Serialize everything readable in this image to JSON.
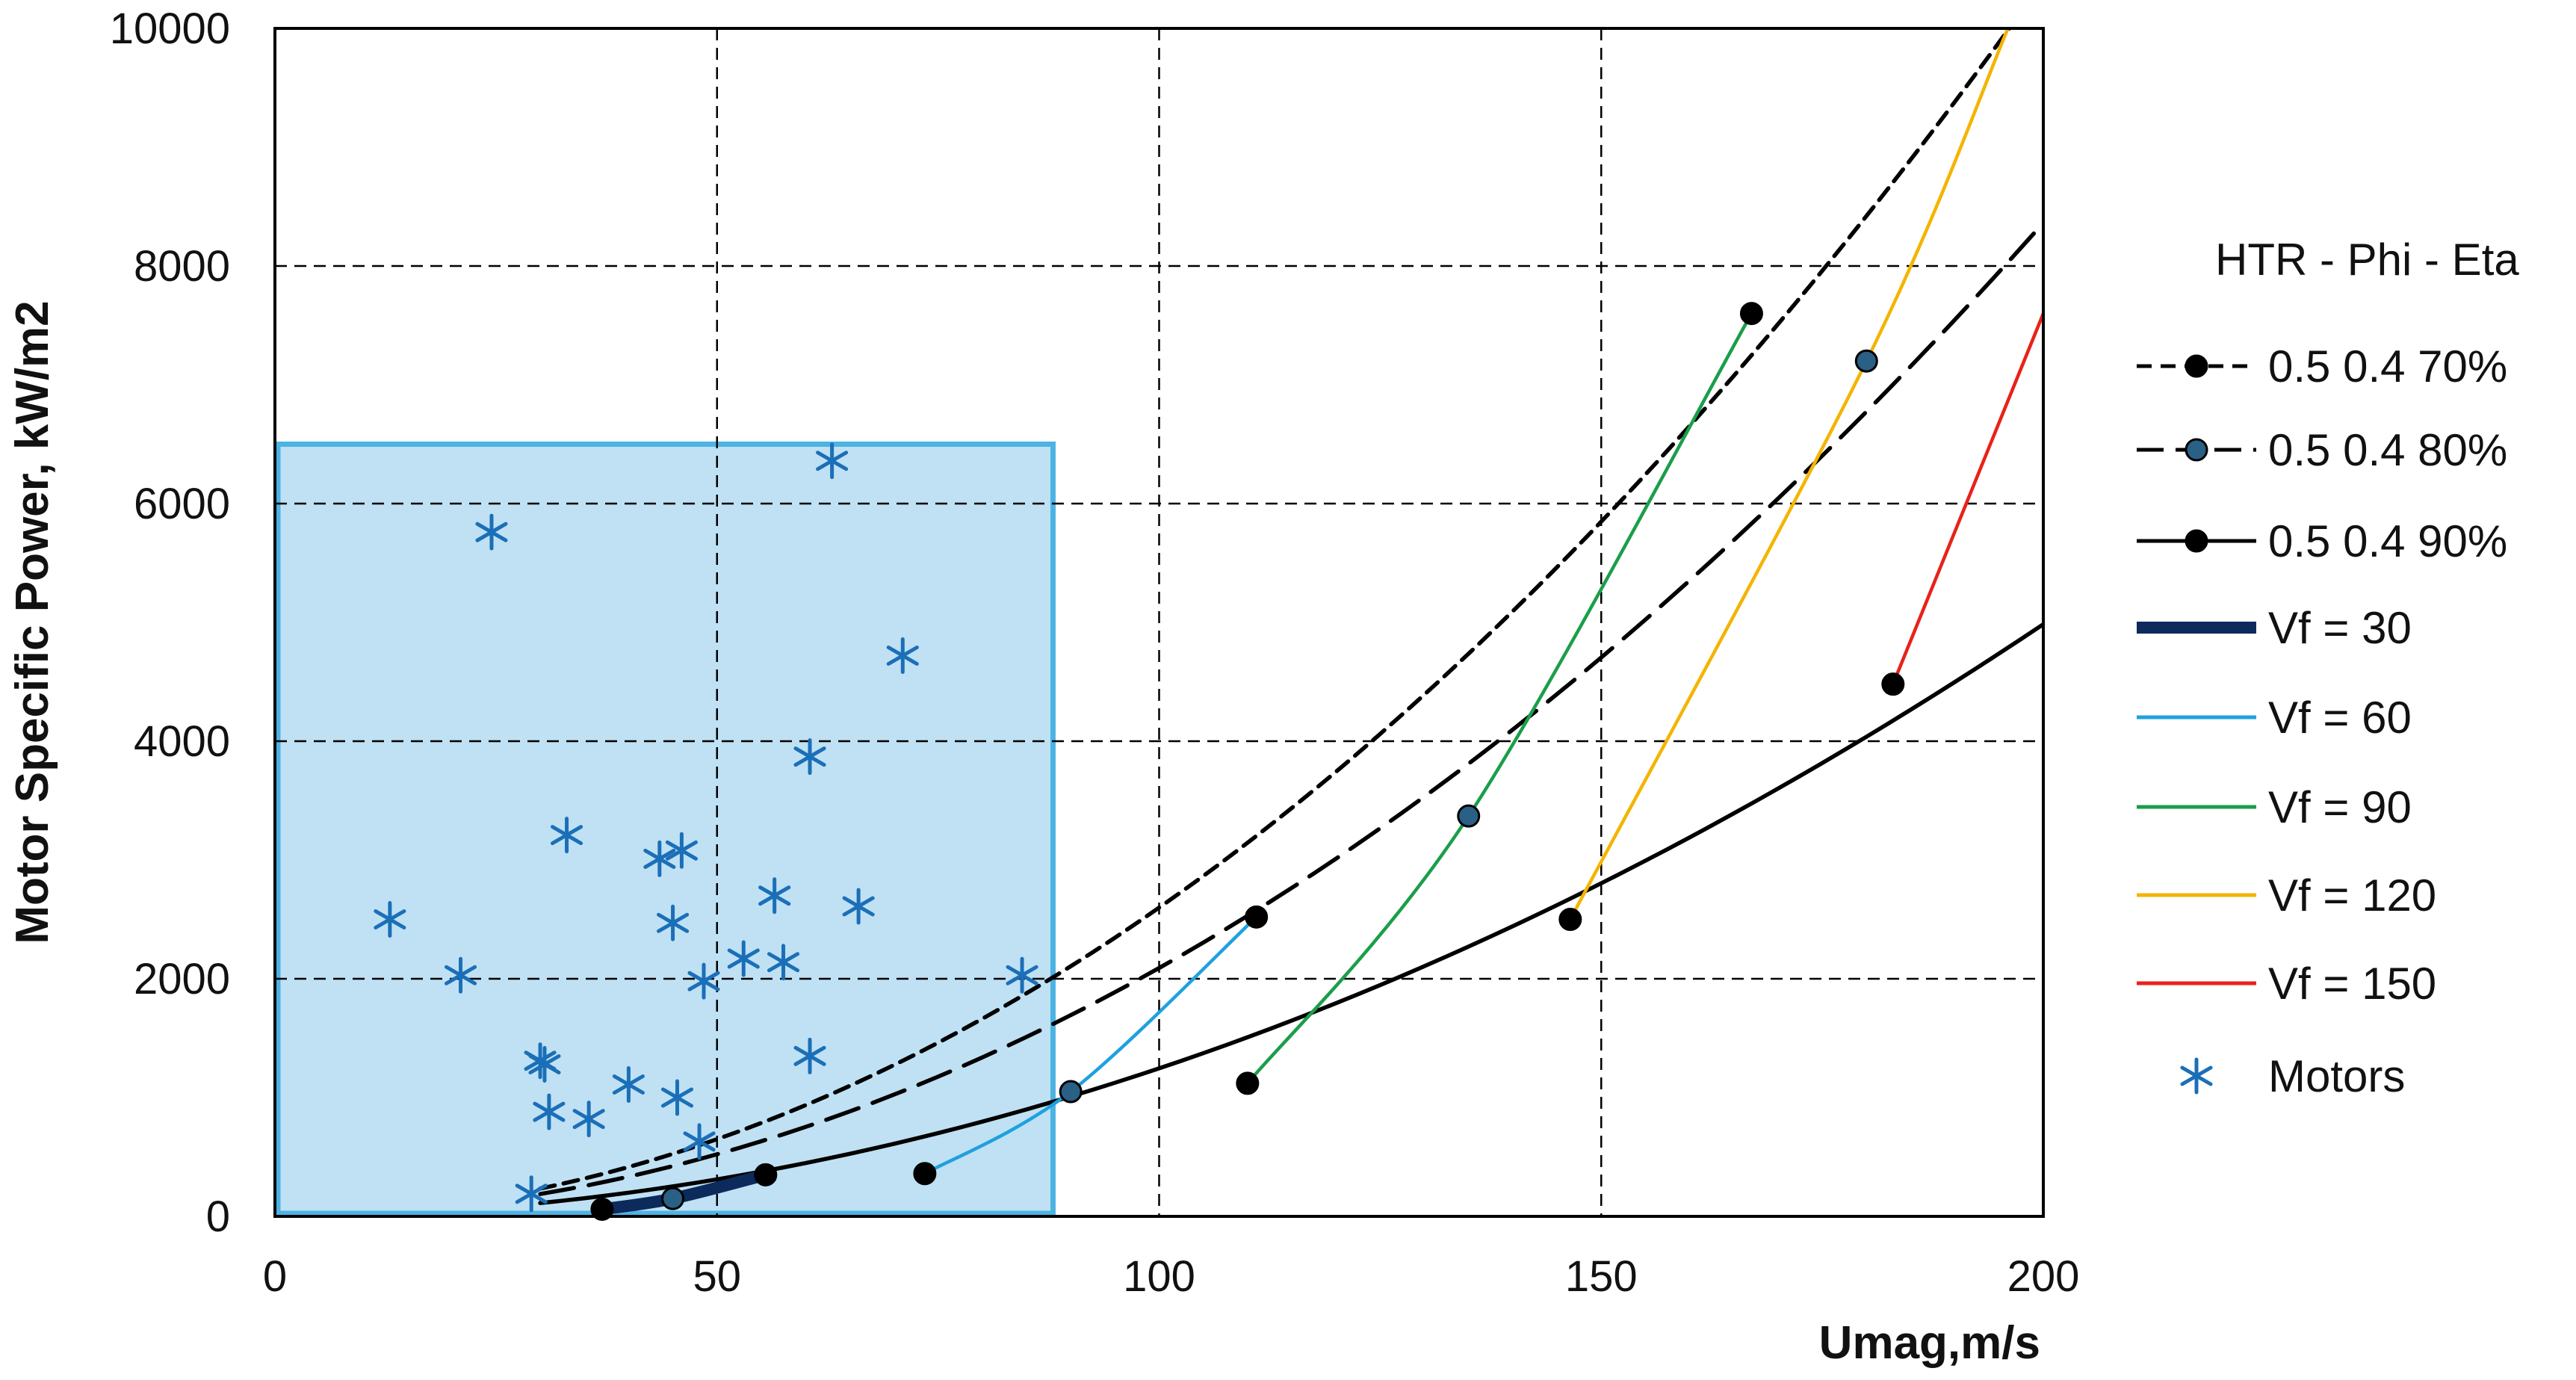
{
  "chart_data": {
    "type": "scatter",
    "xlabel": "Umag,m/s",
    "ylabel": "Motor Specific Power, kW/m2",
    "xlim": [
      0,
      200
    ],
    "ylim": [
      0,
      10000
    ],
    "x_ticks": [
      "0",
      "50",
      "100",
      "150",
      "200"
    ],
    "y_ticks": [
      "0",
      "2000",
      "4000",
      "6000",
      "8000",
      "10000"
    ],
    "grid": "dashed",
    "legend_title": "HTR - Phi - Eta",
    "legend_position": "right",
    "shaded_region": {
      "x": [
        0,
        88
      ],
      "y": [
        0,
        6500
      ],
      "color": "#bfe1f3",
      "edge": "#4db3e3"
    },
    "series": [
      {
        "name": "0.5 0.4 70%",
        "style": "short-dash",
        "color": "#000000",
        "marker_fill": "#000000",
        "x": [
          55.5,
          111,
          167
        ],
        "y": [
          350,
          2520,
          7600
        ]
      },
      {
        "name": "0.5 0.4 80%",
        "style": "long-dash",
        "color": "#000000",
        "marker_fill": "#2a5f86",
        "x": [
          45,
          90,
          135,
          180
        ],
        "y": [
          150,
          1050,
          3370,
          7200
        ]
      },
      {
        "name": "0.5 0.4 90%",
        "style": "solid",
        "color": "#000000",
        "marker_fill": "#000000",
        "x": [
          37,
          73.5,
          110,
          146.5,
          183
        ],
        "y": [
          60,
          360,
          1120,
          2500,
          4480
        ]
      },
      {
        "name": "Vf = 30",
        "style": "thick",
        "color": "#0d2a5c",
        "x": [
          37,
          45,
          55.5
        ],
        "y": [
          60,
          150,
          350
        ]
      },
      {
        "name": "Vf = 60",
        "style": "solid",
        "color": "#1fa0e0",
        "x": [
          73.5,
          90,
          111
        ],
        "y": [
          360,
          1050,
          2520
        ]
      },
      {
        "name": "Vf = 90",
        "style": "solid",
        "color": "#1a9e4a",
        "x": [
          110,
          135,
          167
        ],
        "y": [
          1120,
          3370,
          7600
        ]
      },
      {
        "name": "Vf = 120",
        "style": "solid",
        "color": "#f4b400",
        "x": [
          146.5,
          180,
          196
        ],
        "y": [
          2500,
          7200,
          10000
        ]
      },
      {
        "name": "Vf = 150",
        "style": "solid",
        "color": "#e8221a",
        "x": [
          183,
          200
        ],
        "y": [
          4480,
          7600
        ]
      }
    ],
    "motors": {
      "name": "Motors",
      "color": "#1b6fb8",
      "x": [
        13,
        21,
        24.5,
        29,
        30,
        30.5,
        31,
        33,
        35.5,
        40,
        43.5,
        45,
        45.5,
        46,
        48,
        48.5,
        53,
        56.5,
        57.5,
        60.5,
        60.5,
        63,
        66,
        71,
        84.5
      ],
      "y": [
        2500,
        2030,
        5760,
        190,
        1310,
        1280,
        880,
        3210,
        820,
        1110,
        3010,
        2470,
        1000,
        3080,
        630,
        1980,
        2170,
        2700,
        2140,
        1350,
        3870,
        6360,
        2610,
        4720,
        2030
      ]
    }
  }
}
